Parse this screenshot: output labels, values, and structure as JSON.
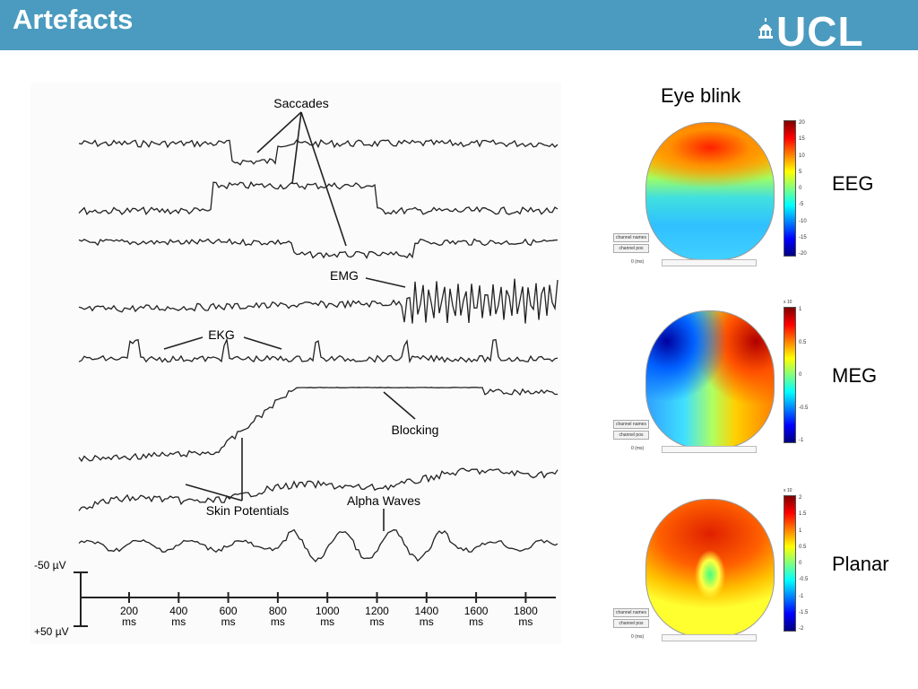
{
  "header": {
    "title": "Artefacts",
    "logo_text": "UCL",
    "accent": "#4a9bbf"
  },
  "eeg_figure": {
    "annotations": {
      "saccades": "Saccades",
      "emg": "EMG",
      "ekg": "EKG",
      "blocking": "Blocking",
      "skin": "Skin Potentials",
      "alpha": "Alpha Waves"
    },
    "scale": {
      "top": "-50 µV",
      "bottom": "+50 µV"
    },
    "time_ticks": [
      "200",
      "400",
      "600",
      "800",
      "1000",
      "1200",
      "1400",
      "1600",
      "1800"
    ],
    "time_unit": "ms"
  },
  "topomaps": {
    "heading": "Eye blink",
    "panels": [
      {
        "label": "EEG",
        "multiplier": "",
        "ticks": [
          "20",
          "15",
          "10",
          "5",
          "0",
          "-5",
          "-10",
          "-15",
          "-20"
        ],
        "btn1": "channel names",
        "btn2": "channel pos",
        "time": "0 (ms)"
      },
      {
        "label": "MEG",
        "multiplier": "x 10",
        "ticks": [
          "1",
          "0.5",
          "0",
          "-0.5",
          "-1"
        ],
        "btn1": "channel names",
        "btn2": "channel pos",
        "time": "0 (ms)"
      },
      {
        "label": "Planar",
        "multiplier": "x 10",
        "ticks": [
          "2",
          "1.5",
          "1",
          "0.5",
          "0",
          "-0.5",
          "-1",
          "-1.5",
          "-2"
        ],
        "btn1": "channel names",
        "btn2": "channel pos",
        "time": "0 (ms)"
      }
    ]
  }
}
